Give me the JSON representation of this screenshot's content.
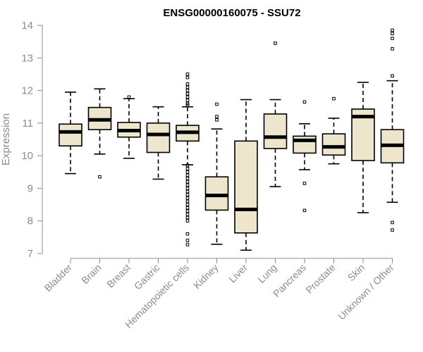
{
  "chart_data": {
    "type": "boxplot",
    "title": "ENSG00000160075 - SSU72",
    "xlabel": "",
    "ylabel": "Expression",
    "ylim": [
      7,
      14
    ],
    "yticks": [
      7,
      8,
      9,
      10,
      11,
      12,
      13,
      14
    ],
    "colors": {
      "box_fill": "#ede6cd",
      "stroke": "#000000",
      "axis": "#8c8c8c"
    },
    "categories": [
      "Bladder",
      "Brain",
      "Breast",
      "Gastric",
      "Hematopoietic cells",
      "Kidney",
      "Liver",
      "Lung",
      "Pancreas",
      "Prostate",
      "Skin",
      "Unknown / Other"
    ],
    "boxes": [
      {
        "q1": 10.3,
        "median": 10.73,
        "q3": 10.97,
        "whisker_low": 9.45,
        "whisker_high": 11.95,
        "outliers": []
      },
      {
        "q1": 10.8,
        "median": 11.1,
        "q3": 11.48,
        "whisker_low": 10.05,
        "whisker_high": 12.05,
        "outliers": [
          9.35
        ]
      },
      {
        "q1": 10.57,
        "median": 10.77,
        "q3": 11.02,
        "whisker_low": 9.92,
        "whisker_high": 11.75,
        "outliers": [
          11.8
        ]
      },
      {
        "q1": 10.1,
        "median": 10.65,
        "q3": 11.0,
        "whisker_low": 9.28,
        "whisker_high": 11.5,
        "outliers": []
      },
      {
        "q1": 10.45,
        "median": 10.72,
        "q3": 10.93,
        "whisker_low": 9.72,
        "whisker_high": 11.5,
        "outliers": [
          12.5,
          12.4,
          12.2,
          12.1,
          12.0,
          11.9,
          11.8,
          11.7,
          11.6,
          11.55,
          9.7,
          9.6,
          9.5,
          9.4,
          9.3,
          9.2,
          9.1,
          9.0,
          8.9,
          8.8,
          8.7,
          8.6,
          8.5,
          8.4,
          8.3,
          8.2,
          8.1,
          8.0,
          7.6,
          7.4,
          7.27
        ]
      },
      {
        "q1": 8.33,
        "median": 8.78,
        "q3": 9.35,
        "whisker_low": 7.28,
        "whisker_high": 10.82,
        "outliers": [
          11.58,
          11.2,
          11.1
        ]
      },
      {
        "q1": 7.63,
        "median": 8.35,
        "q3": 10.45,
        "whisker_low": 7.1,
        "whisker_high": 11.72,
        "outliers": []
      },
      {
        "q1": 10.22,
        "median": 10.57,
        "q3": 11.28,
        "whisker_low": 9.05,
        "whisker_high": 11.72,
        "outliers": [
          13.45
        ]
      },
      {
        "q1": 10.08,
        "median": 10.47,
        "q3": 10.6,
        "whisker_low": 9.57,
        "whisker_high": 10.98,
        "outliers": [
          11.65,
          9.15,
          8.32
        ]
      },
      {
        "q1": 10.02,
        "median": 10.27,
        "q3": 10.67,
        "whisker_low": 9.75,
        "whisker_high": 11.15,
        "outliers": [
          11.75
        ]
      },
      {
        "q1": 9.85,
        "median": 11.2,
        "q3": 11.43,
        "whisker_low": 8.25,
        "whisker_high": 12.25,
        "outliers": []
      },
      {
        "q1": 9.78,
        "median": 10.32,
        "q3": 10.8,
        "whisker_low": 8.57,
        "whisker_high": 12.3,
        "outliers": [
          13.85,
          13.75,
          13.6,
          13.28,
          12.45,
          7.95,
          7.72
        ]
      }
    ]
  }
}
